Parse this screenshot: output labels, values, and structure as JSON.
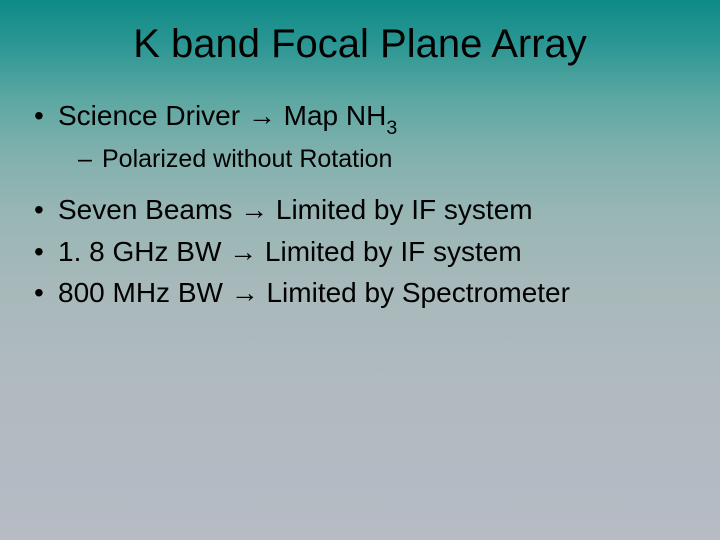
{
  "slide": {
    "title": "K band Focal Plane Array",
    "bullets": [
      {
        "level": 1,
        "prefix": "Science Driver → Map NH",
        "sub": "3",
        "suffix": ""
      },
      {
        "level": 2,
        "text": "Polarized without Rotation"
      },
      {
        "level": 1,
        "text": "Seven Beams → Limited by IF system"
      },
      {
        "level": 1,
        "text": "1. 8 GHz BW → Limited by IF system"
      },
      {
        "level": 1,
        "text": "800 MHz BW → Limited by Spectrometer"
      }
    ],
    "style": {
      "background_gradient": [
        "#0e8a87",
        "#2a9693",
        "#5ba7a2",
        "#7fb0ad",
        "#99b6b5",
        "#a9b9bb",
        "#b2bac1",
        "#b6bbc4"
      ],
      "text_color": "#000000",
      "title_fontsize": 40,
      "bullet_l1_fontsize": 28,
      "bullet_l2_fontsize": 25,
      "font_family": "Arial"
    }
  }
}
